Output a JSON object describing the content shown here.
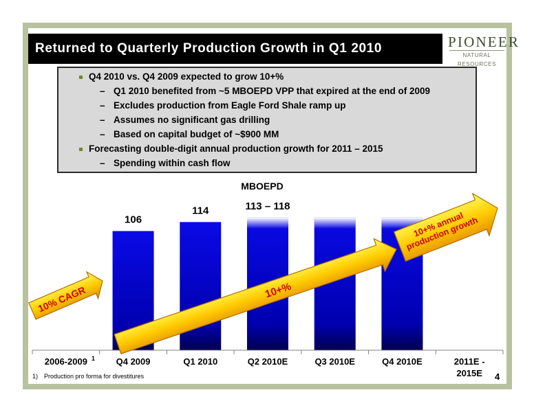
{
  "title": "Returned to Quarterly Production Growth in Q1 2010",
  "logo": {
    "name": "PIONEER",
    "sub": "NATURAL RESOURCES"
  },
  "bullets": [
    {
      "level": 1,
      "text": "Q4 2010 vs. Q4 2009 expected to grow 10+%"
    },
    {
      "level": 2,
      "text": "Q1 2010 benefited from ~5 MBOEPD VPP that expired at the end of 2009"
    },
    {
      "level": 2,
      "text": "Excludes production from Eagle Ford Shale ramp up"
    },
    {
      "level": 2,
      "text": "Assumes no significant gas drilling"
    },
    {
      "level": 2,
      "text": "Based on capital budget of ~$900 MM"
    },
    {
      "level": 1,
      "text": "Forecasting double-digit annual production growth for 2011 – 2015"
    },
    {
      "level": 2,
      "text": "Spending within cash flow"
    }
  ],
  "chart_data": {
    "type": "bar",
    "ylabel": "MBOEPD",
    "categories": [
      "2006-2009",
      "Q4 2009",
      "Q1 2010",
      "Q2 2010E",
      "Q3 2010E",
      "Q4 2010E",
      "2011E - 2015E"
    ],
    "category_footnote": {
      "index": 0,
      "mark": "1"
    },
    "values": [
      null,
      106,
      114,
      118,
      118,
      118,
      null
    ],
    "data_labels": [
      "",
      "106",
      "114",
      "113 – 118",
      "",
      "",
      ""
    ],
    "forecast_range_low": 113,
    "ylim": [
      0,
      135
    ],
    "bar_color": "#0000cc",
    "annotations": [
      {
        "text": "10% CAGR",
        "category": "2006-2009"
      },
      {
        "text": "10+%",
        "category": "Q2 2010E"
      },
      {
        "text_lines": [
          "10+% annual",
          "production growth"
        ],
        "category": "2011E - 2015E"
      }
    ],
    "arrow_color": "#ffcc00"
  },
  "footnote": "1) Production pro forma for divestitures",
  "page_number": "4"
}
